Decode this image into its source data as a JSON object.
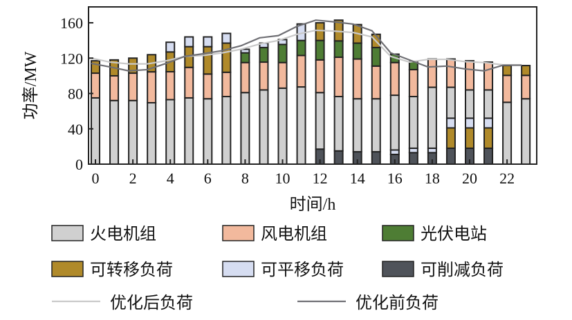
{
  "chart_data": {
    "type": "bar",
    "subtype": "stacked-bar-with-lines",
    "xlabel": "时间/h",
    "ylabel": "功率/MW",
    "ylim": [
      0,
      178
    ],
    "yticks": [
      0,
      40,
      80,
      120,
      160
    ],
    "xticks": [
      0,
      2,
      4,
      6,
      8,
      10,
      12,
      14,
      16,
      18,
      20,
      22
    ],
    "x": [
      0,
      1,
      2,
      3,
      4,
      5,
      6,
      7,
      8,
      9,
      10,
      11,
      12,
      13,
      14,
      15,
      16,
      17,
      18,
      19,
      20,
      21,
      22,
      23
    ],
    "legend_position": "bottom",
    "series": [
      {
        "name": "可削减负荷",
        "key": "cut",
        "color": "#4f535a",
        "values": [
          0,
          0,
          0,
          0,
          0,
          0,
          0,
          0,
          0,
          0,
          0,
          0,
          17,
          15,
          14,
          14,
          11,
          13,
          13,
          18,
          18,
          18,
          0,
          0
        ]
      },
      {
        "name": "可转移负荷(下部)",
        "key": "shift_low",
        "color": "#b08a2a",
        "legend": false,
        "values": [
          0,
          0,
          0,
          0,
          0,
          0,
          0,
          0,
          0,
          0,
          0,
          0,
          0,
          0,
          0,
          0,
          0,
          0,
          0,
          23,
          23,
          23,
          0,
          0
        ]
      },
      {
        "name": "可平移负荷(下部)",
        "key": "trans_low",
        "color": "#d6ddf1",
        "legend": false,
        "values": [
          0,
          0,
          0,
          0,
          0,
          0,
          0,
          0,
          0,
          0,
          0,
          0,
          0,
          0,
          0,
          0,
          5,
          5,
          5,
          11,
          11,
          11,
          0,
          0
        ]
      },
      {
        "name": "火电机组",
        "key": "coal",
        "color": "#d0d0d0",
        "values": [
          75,
          72,
          72,
          69.5,
          73,
          75,
          74,
          76.5,
          81,
          84,
          86,
          87.4,
          64,
          61.5,
          60,
          60,
          62,
          58.5,
          69,
          35,
          32,
          32,
          70,
          74
        ]
      },
      {
        "name": "风电机组",
        "key": "wind",
        "color": "#f2b99d",
        "values": [
          28,
          28,
          31,
          35,
          31.6,
          34.5,
          28,
          27.5,
          34,
          31.5,
          29,
          35.6,
          37,
          44.5,
          45,
          37,
          37,
          30.5,
          32,
          32,
          33,
          31.5,
          30.5,
          26.5
        ]
      },
      {
        "name": "光伏电站",
        "key": "pv",
        "color": "#4e7d34",
        "values": [
          0,
          0,
          0,
          0,
          0,
          0,
          0,
          0,
          11,
          16.5,
          20.5,
          17,
          22,
          18.5,
          18,
          21,
          9.5,
          9,
          0,
          0,
          0,
          0,
          0,
          0
        ]
      },
      {
        "name": "可转移负荷",
        "key": "shift",
        "color": "#b08a2a",
        "values": [
          14,
          18,
          17,
          19.4,
          22.4,
          23.5,
          31,
          33,
          0,
          0,
          0,
          0,
          20,
          23.5,
          21,
          15,
          0,
          0,
          0,
          0,
          0,
          0,
          11.1,
          11.1
        ]
      },
      {
        "name": "可平移负荷",
        "key": "trans",
        "color": "#d6ddf1",
        "values": [
          0,
          0,
          0,
          0,
          11,
          11,
          11,
          11,
          4,
          5,
          5.5,
          18.7,
          0,
          0,
          0,
          0,
          0,
          0,
          0,
          0,
          0,
          0,
          0,
          0
        ]
      }
    ],
    "lines": [
      {
        "name": "优化后负荷",
        "color": "#c9c9c9",
        "values": [
          120,
          115.5,
          113.5,
          113.5,
          117,
          122,
          123,
          126,
          130,
          136,
          140,
          147,
          151.5,
          150.6,
          149,
          144,
          122,
          115.5,
          118.6,
          118.6,
          116,
          115,
          112.4,
          112.4
        ]
      },
      {
        "name": "优化前负荷",
        "color": "#6f6f74",
        "values": [
          114,
          110,
          105.6,
          107,
          114,
          122,
          125,
          128.5,
          134,
          143,
          145.5,
          156,
          163,
          161,
          158.5,
          151,
          126,
          118,
          110,
          111,
          107.7,
          105.6,
          112,
          112
        ]
      }
    ],
    "legend": [
      {
        "label": "火电机组",
        "type": "box",
        "color": "#d0d0d0"
      },
      {
        "label": "风电机组",
        "type": "box",
        "color": "#f2b99d"
      },
      {
        "label": "光伏电站",
        "type": "box",
        "color": "#4e7d34"
      },
      {
        "label": "可转移负荷",
        "type": "box",
        "color": "#b08a2a"
      },
      {
        "label": "可平移负荷",
        "type": "box",
        "color": "#d6ddf1"
      },
      {
        "label": "可削减负荷",
        "type": "box",
        "color": "#4f535a"
      },
      {
        "label": "优化后负荷",
        "type": "line",
        "color": "#c9c9c9"
      },
      {
        "label": "优化前负荷",
        "type": "line",
        "color": "#6f6f74"
      }
    ]
  }
}
